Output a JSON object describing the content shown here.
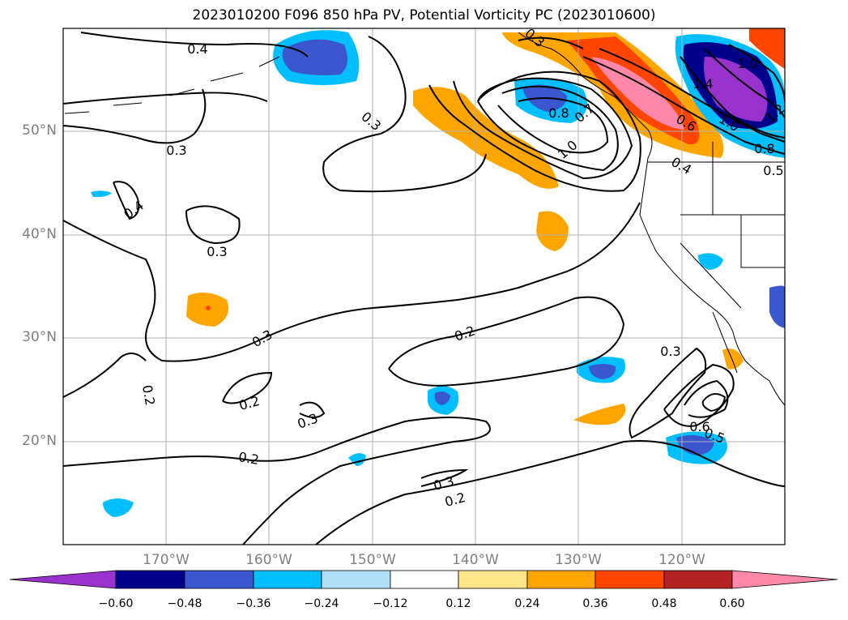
{
  "title": "2023010200 F096 850 hPa PV, Potential Vorticity PC (2023010600)",
  "map": {
    "lat_labels": [
      "50°N",
      "40°N",
      "30°N",
      "20°N"
    ],
    "lon_labels": [
      "170°W",
      "160°W",
      "150°W",
      "140°W",
      "130°W",
      "120°W"
    ],
    "grid": true,
    "contour_labels": [
      "0.4",
      "0.3",
      "0.3",
      "0.4",
      "0.3",
      "0.3",
      "0.2",
      "0.2",
      "0.3",
      "0.2",
      "0.2",
      "0.3",
      "0.2",
      "0.3",
      "0.8",
      "1.0",
      "0.6",
      "0.4",
      "1.4",
      "1.0",
      "1.0",
      "1.2",
      "0.8",
      "0.5",
      "0.3",
      "0.6",
      "0.5",
      "0.7"
    ]
  },
  "colorbar": {
    "tick_labels": [
      "−0.60",
      "−0.48",
      "−0.36",
      "−0.24",
      "−0.12",
      "0.12",
      "0.24",
      "0.36",
      "0.48",
      "0.60"
    ],
    "colors": [
      "#9932cc",
      "#00008b",
      "#3a57d0",
      "#00bfff",
      "#b0e0f8",
      "#ffffff",
      "#ffe68a",
      "#ffa500",
      "#ff4500",
      "#b22222",
      "#ff88aa"
    ]
  }
}
